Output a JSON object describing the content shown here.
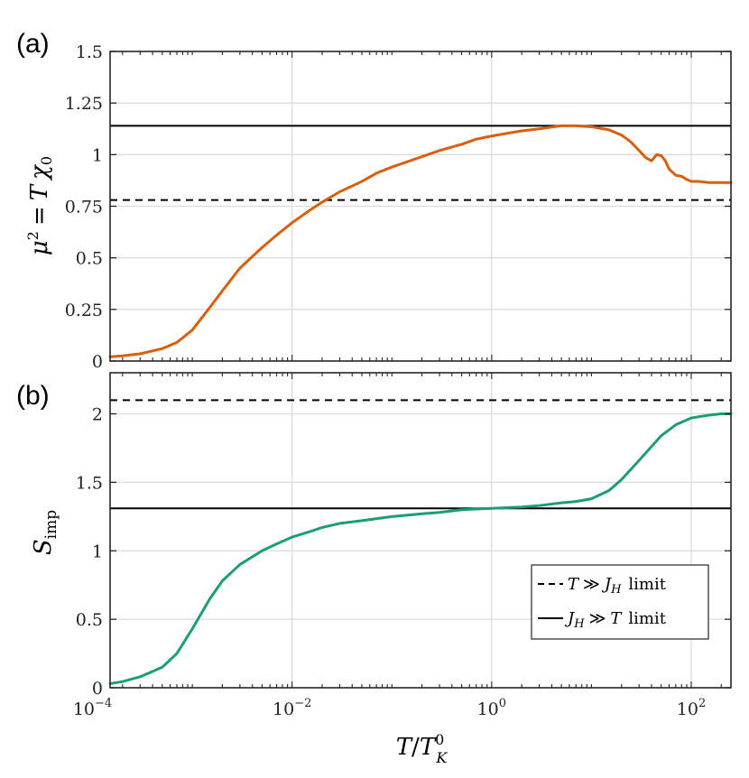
{
  "chart_data": [
    {
      "panel_label": "(a)",
      "type": "line",
      "ylabel": "μ² = T χ₀",
      "ylabel_parts": {
        "mu": "μ",
        "sq": "2",
        "eq": "=",
        "T": "T",
        "chi": "χ",
        "sub": "0"
      },
      "xscale": "log",
      "xlim": [
        0.00015,
        250
      ],
      "ylim": [
        0,
        1.5
      ],
      "yticks": [
        0,
        0.25,
        0.5,
        0.75,
        1,
        1.25,
        1.5
      ],
      "ytick_labels": [
        "0",
        "0.25",
        "0.5",
        "0.75",
        "1",
        "1.25",
        "1.5"
      ],
      "grid": true,
      "series": [
        {
          "name": "μ²",
          "color": "#D95F0E",
          "x": [
            0.00015,
            0.0002,
            0.0003,
            0.0005,
            0.0007,
            0.001,
            0.0015,
            0.002,
            0.003,
            0.005,
            0.007,
            0.01,
            0.015,
            0.02,
            0.03,
            0.05,
            0.07,
            0.1,
            0.2,
            0.3,
            0.5,
            0.7,
            1,
            1.5,
            2,
            3,
            5,
            7,
            10,
            15,
            20,
            25,
            30,
            35,
            40,
            45,
            50,
            55,
            60,
            70,
            80,
            90,
            100,
            120,
            150,
            200,
            250
          ],
          "y": [
            0.02,
            0.025,
            0.035,
            0.06,
            0.09,
            0.15,
            0.26,
            0.34,
            0.45,
            0.55,
            0.61,
            0.67,
            0.73,
            0.77,
            0.82,
            0.87,
            0.91,
            0.94,
            0.99,
            1.02,
            1.05,
            1.075,
            1.09,
            1.105,
            1.115,
            1.125,
            1.14,
            1.14,
            1.135,
            1.12,
            1.095,
            1.06,
            1.02,
            0.985,
            0.97,
            1.0,
            0.995,
            0.97,
            0.93,
            0.9,
            0.895,
            0.88,
            0.87,
            0.87,
            0.865,
            0.865,
            0.865
          ]
        }
      ],
      "hlines": [
        {
          "name": "T ≫ J_H limit",
          "y": 0.78,
          "style": "dashed"
        },
        {
          "name": "J_H ≫ T limit",
          "y": 1.14,
          "style": "solid"
        }
      ]
    },
    {
      "panel_label": "(b)",
      "type": "line",
      "ylabel": "S_imp",
      "ylabel_parts": {
        "S": "S",
        "sub": "imp"
      },
      "xscale": "log",
      "xlabel": "T/T_K^0",
      "xlabel_parts": {
        "T": "T",
        "slash": "/",
        "TK": "T",
        "sup": "0",
        "sub": "K"
      },
      "xlim": [
        0.00015,
        250
      ],
      "xticks": [
        0.0001,
        0.01,
        1,
        100
      ],
      "xtick_labels": [
        {
          "base": "10",
          "exp": "−4"
        },
        {
          "base": "10",
          "exp": "−2"
        },
        {
          "base": "10",
          "exp": "0"
        },
        {
          "base": "10",
          "exp": "2"
        }
      ],
      "ylim": [
        0,
        2.3
      ],
      "yticks": [
        0,
        0.5,
        1,
        1.5,
        2
      ],
      "ytick_labels": [
        "0",
        "0.5",
        "1",
        "1.5",
        "2"
      ],
      "grid": true,
      "series": [
        {
          "name": "S_imp",
          "color": "#1B9E77",
          "x": [
            0.00015,
            0.0002,
            0.0003,
            0.0005,
            0.0007,
            0.001,
            0.0015,
            0.002,
            0.003,
            0.005,
            0.007,
            0.01,
            0.015,
            0.02,
            0.03,
            0.05,
            0.1,
            0.2,
            0.3,
            0.5,
            1,
            2,
            3,
            5,
            7,
            10,
            15,
            20,
            30,
            50,
            70,
            100,
            150,
            200,
            250
          ],
          "y": [
            0.03,
            0.045,
            0.08,
            0.15,
            0.25,
            0.43,
            0.65,
            0.78,
            0.9,
            1.0,
            1.05,
            1.1,
            1.14,
            1.17,
            1.2,
            1.22,
            1.25,
            1.27,
            1.28,
            1.3,
            1.31,
            1.32,
            1.33,
            1.35,
            1.36,
            1.38,
            1.44,
            1.52,
            1.66,
            1.84,
            1.92,
            1.97,
            1.99,
            2.0,
            2.0
          ]
        }
      ],
      "hlines": [
        {
          "name": "T ≫ J_H limit",
          "y": 2.1,
          "style": "dashed"
        },
        {
          "name": "J_H ≫ T limit",
          "y": 1.31,
          "style": "solid"
        }
      ],
      "legend": {
        "placement": "lower-right",
        "entries": [
          {
            "style": "dashed",
            "T": "T",
            "op": "≫",
            "J": "J",
            "sub": "H",
            "word": "limit"
          },
          {
            "style": "solid",
            "T": "T",
            "op": "≫",
            "J": "J",
            "sub": "H",
            "word": "limit"
          }
        ]
      }
    }
  ]
}
